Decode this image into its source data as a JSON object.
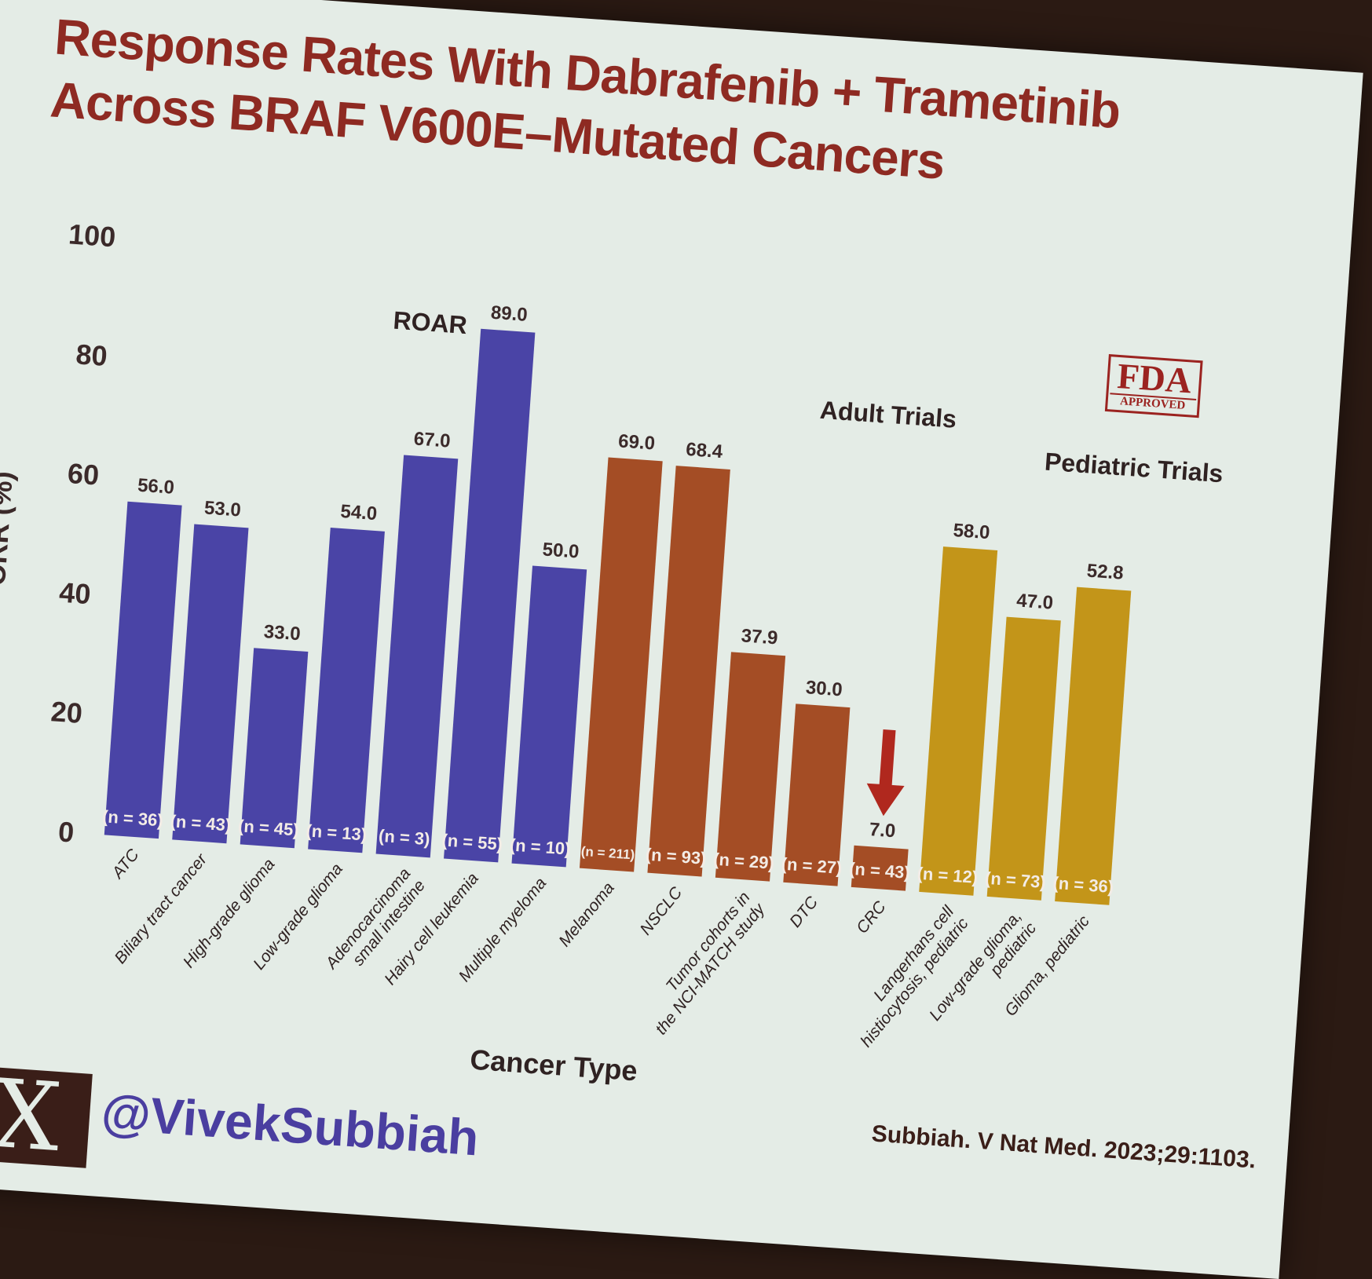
{
  "slide": {
    "title_line1": "Response Rates With Dabrafenib + Trametinib",
    "title_line2": "Across BRAF V600E–Mutated Cancers",
    "fda_stamp": {
      "big": "FDA",
      "small": "APPROVED"
    },
    "social_icon": "x-logo-icon",
    "social_logo_text": "X",
    "handle": "@VivekSubbiah",
    "citation": "Subbiah. V Nat Med. 2023;29:1103."
  },
  "chart_data": {
    "type": "bar",
    "title": "Response Rates With Dabrafenib + Trametinib Across BRAF V600E–Mutated Cancers",
    "xlabel": "Cancer Type",
    "ylabel": "ORR (%)",
    "ylim": [
      0,
      100
    ],
    "yticks": [
      "0",
      "20",
      "40",
      "60",
      "80",
      "100"
    ],
    "groups": [
      {
        "name": "ROAR",
        "color": "#4a44a6"
      },
      {
        "name": "Adult Trials",
        "color": "#a44d25"
      },
      {
        "name": "Pediatric Trials",
        "color": "#c39519"
      }
    ],
    "bars": [
      {
        "category": "ATC",
        "value": 56.0,
        "label": "56.0",
        "n": "(n = 36)",
        "group": 0
      },
      {
        "category": "Biliary tract cancer",
        "value": 53.0,
        "label": "53.0",
        "n": "(n = 43)",
        "group": 0
      },
      {
        "category": "High-grade glioma",
        "value": 33.0,
        "label": "33.0",
        "n": "(n = 45)",
        "group": 0
      },
      {
        "category": "Low-grade glioma",
        "value": 54.0,
        "label": "54.0",
        "n": "(n = 13)",
        "group": 0
      },
      {
        "category": "Adenocarcinoma small intestine",
        "value": 67.0,
        "label": "67.0",
        "n": "(n = 3)",
        "group": 0
      },
      {
        "category": "Hairy cell leukemia",
        "value": 89.0,
        "label": "89.0",
        "n": "(n = 55)",
        "group": 0
      },
      {
        "category": "Multiple myeloma",
        "value": 50.0,
        "label": "50.0",
        "n": "(n = 10)",
        "group": 0
      },
      {
        "category": "Melanoma",
        "value": 69.0,
        "label": "69.0",
        "n": "(n = 211)",
        "group": 1
      },
      {
        "category": "NSCLC",
        "value": 68.4,
        "label": "68.4",
        "n": "(n = 93)",
        "group": 1
      },
      {
        "category": "Tumor cohorts in the NCI-MATCH study",
        "value": 37.9,
        "label": "37.9",
        "n": "(n = 29)",
        "group": 1
      },
      {
        "category": "DTC",
        "value": 30.0,
        "label": "30.0",
        "n": "(n = 27)",
        "group": 1
      },
      {
        "category": "CRC",
        "value": 7.0,
        "label": "7.0",
        "n": "(n = 43)",
        "group": 1
      },
      {
        "category": "Langerhans cell histiocytosis, pediatric",
        "value": 58.0,
        "label": "58.0",
        "n": "(n = 12)",
        "group": 2
      },
      {
        "category": "Low-grade glioma, pediatric",
        "value": 47.0,
        "label": "47.0",
        "n": "(n = 73)",
        "group": 2
      },
      {
        "category": "Glioma, pediatric",
        "value": 52.8,
        "label": "52.8",
        "n": "(n = 36)",
        "group": 2
      }
    ],
    "annotations": [
      {
        "type": "arrow-down",
        "target": "CRC",
        "color": "#b0281e"
      }
    ],
    "grid": false,
    "legend": "none"
  }
}
